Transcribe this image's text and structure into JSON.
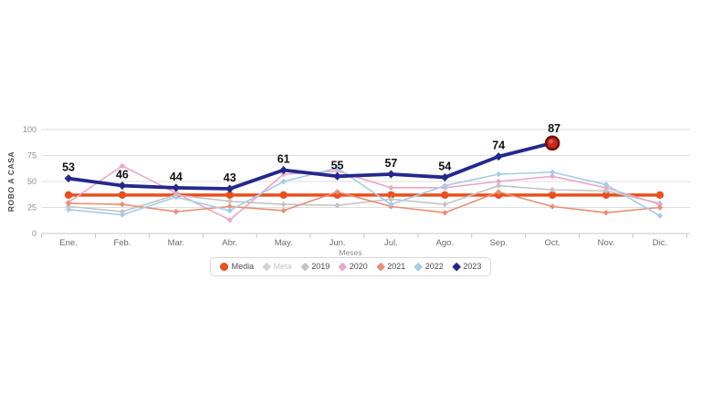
{
  "axis": {
    "y_title": "ROBO A CASA",
    "x_title": "Meses",
    "y_tick_labels": [
      "0",
      "25",
      "50",
      "75",
      "100"
    ]
  },
  "legend": {
    "items": [
      {
        "id": "media",
        "label": "Media",
        "shape": "circle",
        "color": "#E8501D",
        "disabled": false
      },
      {
        "id": "meta",
        "label": "Meta",
        "shape": "diamond",
        "color": "#D2D2D2",
        "disabled": true
      },
      {
        "id": "2019",
        "label": "2019",
        "shape": "diamond",
        "color": "#C4C4C4",
        "disabled": false
      },
      {
        "id": "2020",
        "label": "2020",
        "shape": "diamond",
        "color": "#EBA7C8",
        "disabled": false
      },
      {
        "id": "2021",
        "label": "2021",
        "shape": "diamond",
        "color": "#E98F75",
        "disabled": false
      },
      {
        "id": "2022",
        "label": "2022",
        "shape": "diamond",
        "color": "#A6CCE9",
        "disabled": false
      },
      {
        "id": "2023",
        "label": "2023",
        "shape": "diamond",
        "color": "#23298C",
        "disabled": false
      }
    ]
  },
  "chart_data": {
    "type": "line",
    "title": "",
    "xlabel": "Meses",
    "ylabel": "ROBO A CASA",
    "ylim": [
      0,
      100
    ],
    "y_ticks": [
      0,
      25,
      50,
      75,
      100
    ],
    "grid": "horizontal",
    "legend_position": "bottom",
    "categories": [
      "Ene.",
      "Feb.",
      "Mar.",
      "Abr.",
      "May.",
      "Jun.",
      "Jul.",
      "Ago.",
      "Sep.",
      "Oct.",
      "Nov.",
      "Dic."
    ],
    "series": [
      {
        "name": "Media",
        "color": "#E8501D",
        "line_width": 3.5,
        "marker": "circle",
        "marker_r": 4.2,
        "values": [
          37,
          37,
          37,
          37,
          37,
          37,
          37,
          37,
          37,
          37,
          37,
          37
        ]
      },
      {
        "name": "Meta",
        "color": "#D2D2D2",
        "hidden": true,
        "values": null
      },
      {
        "name": "2019",
        "color": "#C4C4C4",
        "line_width": 1.6,
        "marker": "diamond",
        "marker_r": 3.2,
        "values": [
          26,
          21,
          37,
          31,
          28,
          27,
          33,
          28,
          46,
          42,
          41,
          29
        ]
      },
      {
        "name": "2020",
        "color": "#EBA7C8",
        "line_width": 1.6,
        "marker": "diamond",
        "marker_r": 3.2,
        "values": [
          30,
          65,
          39,
          13,
          57,
          60,
          44,
          44,
          50,
          55,
          44,
          28
        ]
      },
      {
        "name": "2021",
        "color": "#E98F75",
        "line_width": 1.6,
        "marker": "diamond",
        "marker_r": 3.2,
        "values": [
          29,
          28,
          21,
          26,
          22,
          40,
          26,
          20,
          40,
          26,
          20,
          25
        ]
      },
      {
        "name": "2022",
        "color": "#A6CCE9",
        "line_width": 1.6,
        "marker": "diamond",
        "marker_r": 3.2,
        "values": [
          23,
          18,
          35,
          22,
          50,
          63,
          28,
          46,
          57,
          59,
          47,
          17
        ]
      },
      {
        "name": "2023",
        "color": "#23298C",
        "line_width": 3.8,
        "marker": "diamond",
        "marker_r": 4.5,
        "values": [
          53,
          46,
          44,
          43,
          61,
          55,
          57,
          54,
          74,
          87,
          null,
          null
        ],
        "data_labels": [
          "53",
          "46",
          "44",
          "43",
          "61",
          "55",
          "57",
          "54",
          "74",
          "87"
        ],
        "end_bullet": {
          "fill": "#C72A1F",
          "stroke": "#6F0F08"
        }
      }
    ]
  }
}
